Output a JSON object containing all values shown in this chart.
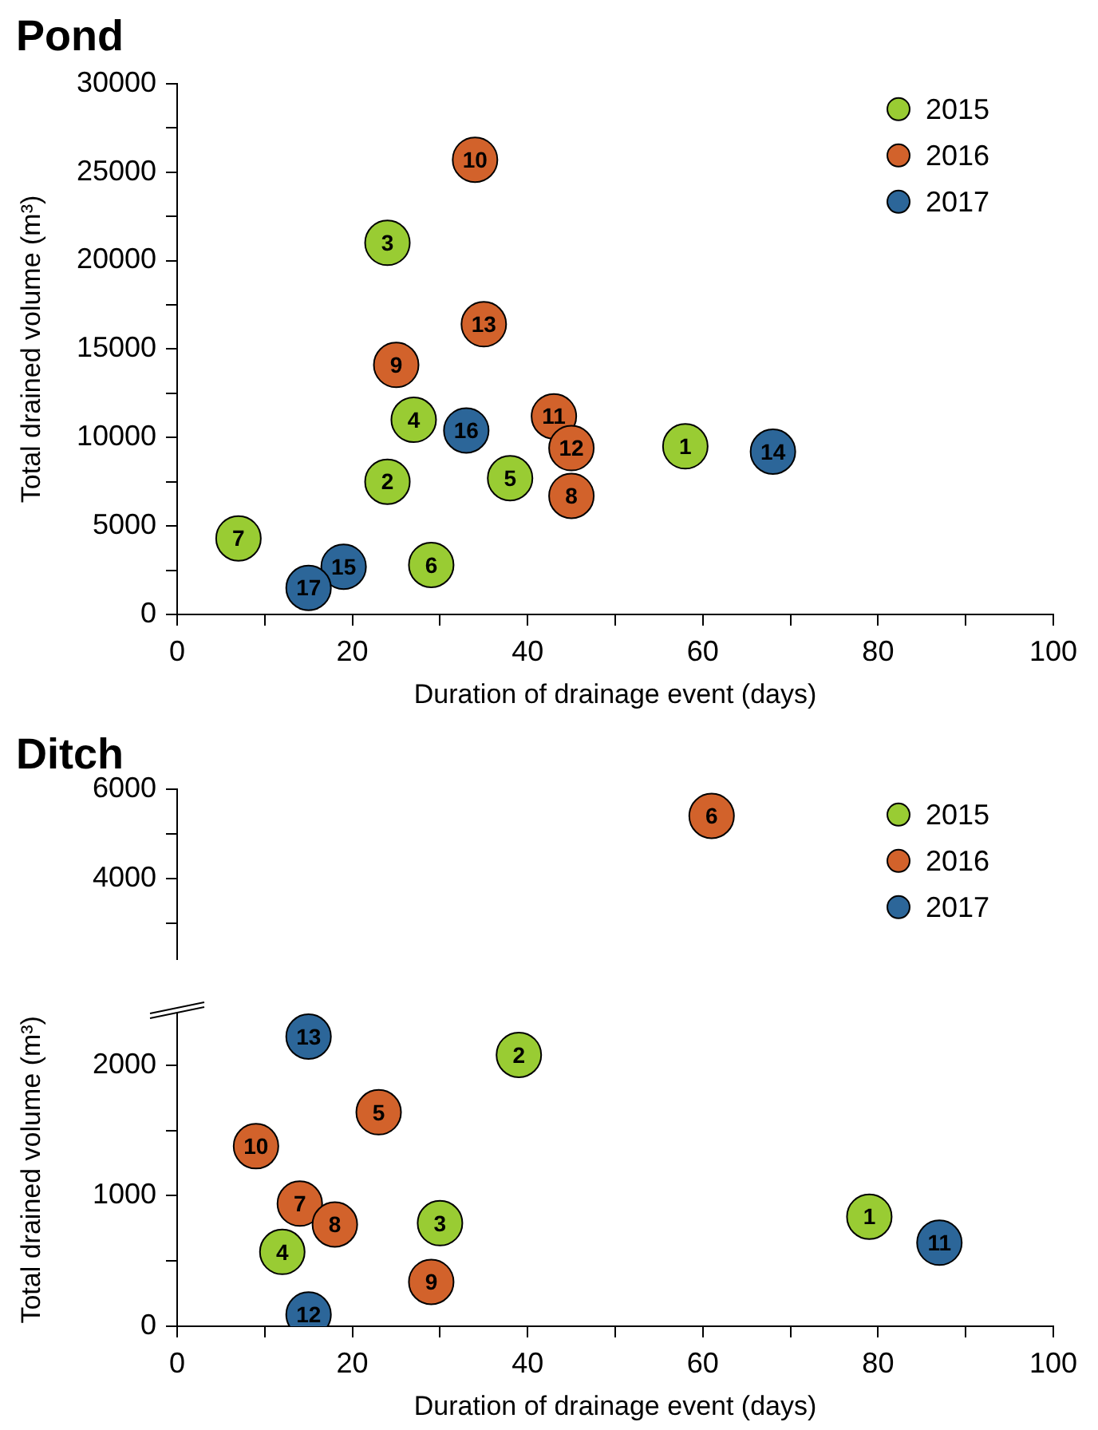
{
  "chart_data": [
    {
      "type": "scatter",
      "title": "Pond",
      "xlabel": "Duration of drainage event (days)",
      "ylabel": "Total drained volume (m³)",
      "xlim": [
        0,
        100
      ],
      "xticks": [
        0,
        {
          "value": 10,
          "label": null
        },
        20,
        {
          "value": 30,
          "label": null
        },
        40,
        {
          "value": 50,
          "label": null
        },
        60,
        {
          "value": 70,
          "label": null
        },
        80,
        {
          "value": 90,
          "label": null
        },
        100
      ],
      "ylim": [
        0,
        30000
      ],
      "yticks": [
        0,
        {
          "value": 2500,
          "label": null
        },
        5000,
        {
          "value": 7500,
          "label": null
        },
        10000,
        {
          "value": 12500,
          "label": null
        },
        15000,
        {
          "value": 17500,
          "label": null
        },
        20000,
        {
          "value": 22500,
          "label": null
        },
        25000,
        {
          "value": 27500,
          "label": null
        },
        30000
      ],
      "grid": false,
      "legend": "top right",
      "marker": "circle",
      "series": [
        {
          "name": "2015",
          "color": "#99cc33",
          "x": [
            58,
            24,
            24,
            27,
            38,
            29,
            7
          ],
          "values": [
            9500,
            7500,
            21000,
            11000,
            7700,
            2800,
            4300
          ]
        },
        {
          "name": "2016",
          "color": "#d2622b",
          "x": [
            45,
            25,
            34,
            43,
            45,
            35
          ],
          "values": [
            6700,
            14100,
            25700,
            11200,
            9400,
            16400
          ]
        },
        {
          "name": "2017",
          "color": "#2c6699",
          "x": [
            68,
            19,
            33,
            15
          ],
          "values": [
            9200,
            2700,
            10400,
            1500
          ]
        }
      ],
      "annotations": [
        {
          "text": "1",
          "x": 58,
          "y": 9500
        },
        {
          "text": "2",
          "x": 24,
          "y": 7500
        },
        {
          "text": "3",
          "x": 24,
          "y": 21000
        },
        {
          "text": "4",
          "x": 27,
          "y": 11000
        },
        {
          "text": "5",
          "x": 38,
          "y": 7700
        },
        {
          "text": "6",
          "x": 29,
          "y": 2800
        },
        {
          "text": "7",
          "x": 7,
          "y": 4300
        },
        {
          "text": "8",
          "x": 45,
          "y": 6700
        },
        {
          "text": "9",
          "x": 25,
          "y": 14100
        },
        {
          "text": "10",
          "x": 34,
          "y": 25700
        },
        {
          "text": "11",
          "x": 43,
          "y": 11200
        },
        {
          "text": "12",
          "x": 45,
          "y": 9400
        },
        {
          "text": "13",
          "x": 35,
          "y": 16400
        },
        {
          "text": "14",
          "x": 68,
          "y": 9200
        },
        {
          "text": "15",
          "x": 19,
          "y": 2700
        },
        {
          "text": "16",
          "x": 33,
          "y": 10400
        },
        {
          "text": "17",
          "x": 15,
          "y": 1500
        }
      ]
    },
    {
      "type": "scatter",
      "title": "Ditch",
      "xlim": [
        0,
        100
      ],
      "xticks": [
        0,
        20,
        40,
        60,
        80,
        100
      ],
      "ylim": [
        2200,
        6000
      ],
      "yticks": [
        {
          "value": 3000,
          "label": null
        },
        4000,
        {
          "value": 5000,
          "label": null
        },
        6000
      ],
      "tick_labels": "y",
      "grid": false,
      "legend": "top right",
      "marker": "circle",
      "series": [
        {
          "name": "2015",
          "color": "#99cc33"
        },
        {
          "name": "2016",
          "color": "#d2622b",
          "x": [
            61
          ],
          "values": [
            5400
          ]
        },
        {
          "name": "2017",
          "color": "#2c6699"
        }
      ],
      "annotations": [
        {
          "text": "6",
          "x": 61,
          "y": 5400
        }
      ]
    },
    {
      "type": "scatter",
      "xlabel": "Duration of drainage event (days)",
      "ylabel": "Total drained volume (m³)",
      "xlim": [
        0,
        100
      ],
      "xticks": [
        0,
        {
          "value": 10,
          "label": null
        },
        20,
        {
          "value": 30,
          "label": null
        },
        40,
        {
          "value": 50,
          "label": null
        },
        60,
        {
          "value": 70,
          "label": null
        },
        80,
        {
          "value": 90,
          "label": null
        },
        100
      ],
      "ylim": [
        0,
        2400
      ],
      "yticks": [
        0,
        {
          "value": 500,
          "label": null
        },
        1000,
        {
          "value": 1500,
          "label": null
        },
        2000
      ],
      "grid": false,
      "marker": "circle",
      "series": [
        {
          "color": "#99cc33",
          "x": [
            79,
            39,
            30,
            12
          ],
          "values": [
            840,
            2080,
            790,
            570
          ]
        },
        {
          "color": "#d2622b",
          "x": [
            23,
            14,
            18,
            29,
            9
          ],
          "values": [
            1640,
            940,
            780,
            340,
            1380
          ]
        },
        {
          "color": "#2c6699",
          "x": [
            87,
            15,
            15
          ],
          "values": [
            640,
            90,
            2220
          ]
        }
      ],
      "annotations": [
        {
          "text": "1",
          "x": 79,
          "y": 840
        },
        {
          "text": "2",
          "x": 39,
          "y": 2080
        },
        {
          "text": "3",
          "x": 30,
          "y": 790
        },
        {
          "text": "4",
          "x": 12,
          "y": 570
        },
        {
          "text": "5",
          "x": 23,
          "y": 1640
        },
        {
          "text": "7",
          "x": 14,
          "y": 940
        },
        {
          "text": "8",
          "x": 18,
          "y": 780
        },
        {
          "text": "9",
          "x": 29,
          "y": 340
        },
        {
          "text": "10",
          "x": 9,
          "y": 1380
        },
        {
          "text": "11",
          "x": 87,
          "y": 640
        },
        {
          "text": "12",
          "x": 15,
          "y": 90
        },
        {
          "text": "13",
          "x": 15,
          "y": 2220
        }
      ]
    }
  ]
}
